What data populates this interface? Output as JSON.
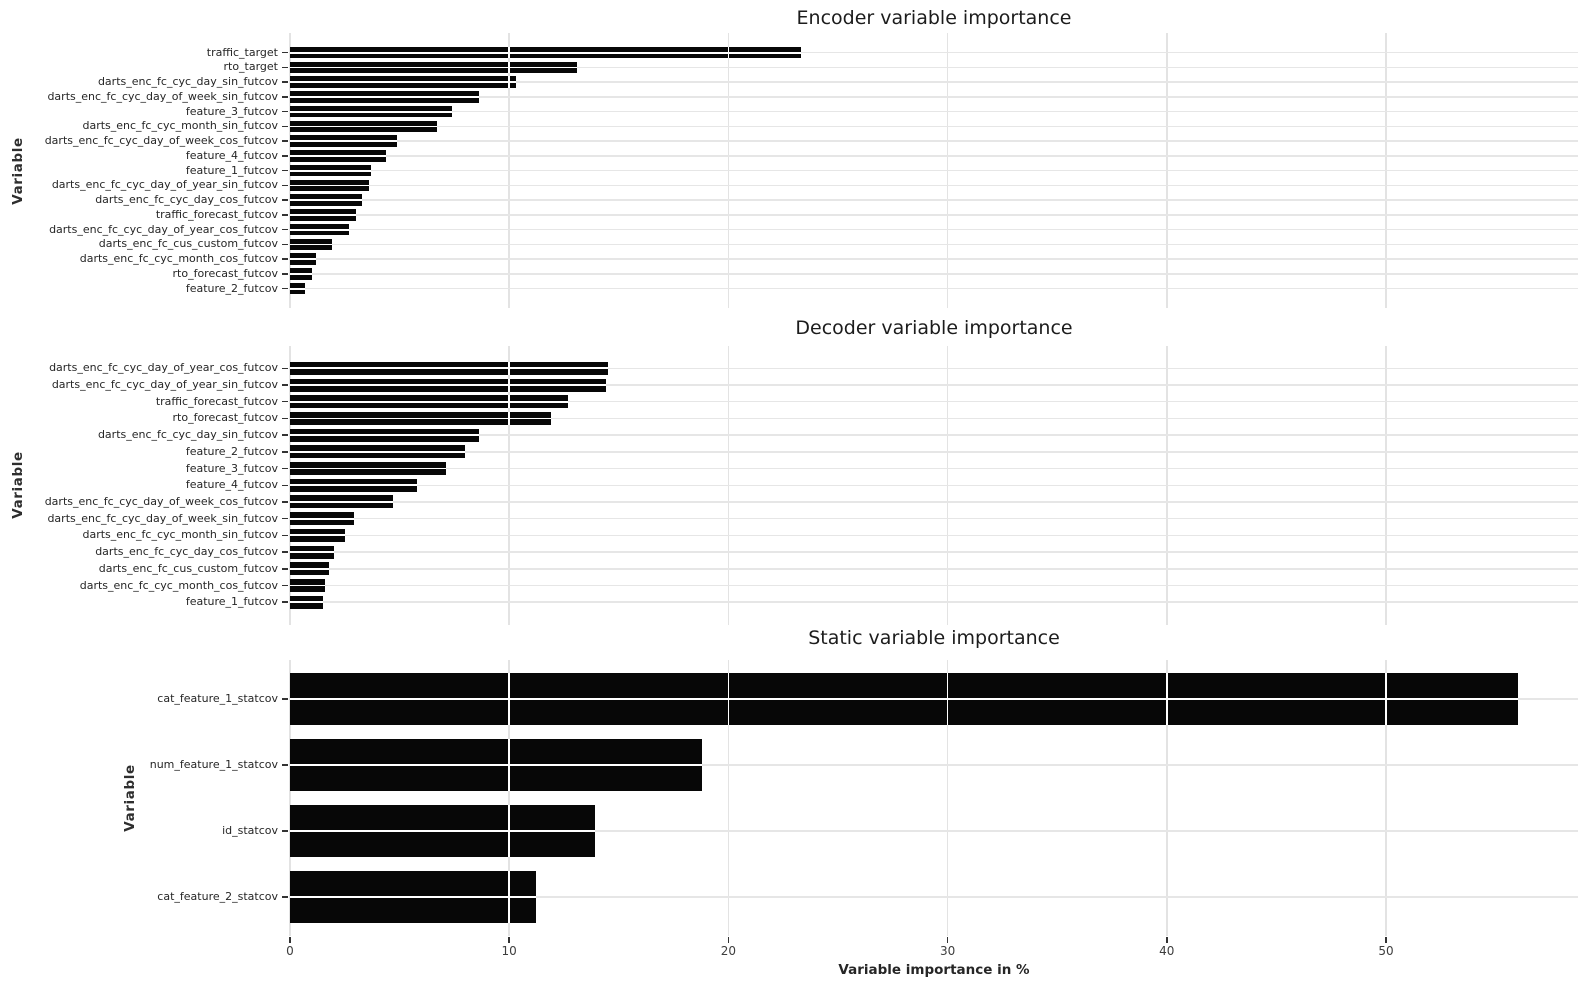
{
  "figure": {
    "background_color": "#ffffff",
    "bar_color": "#070707",
    "gridline_color": "#e3e3e3",
    "x_axis": {
      "label": "Variable importance in %",
      "ticks": [
        0,
        10,
        20,
        30,
        40,
        50
      ],
      "range": [
        0,
        58.8
      ]
    }
  },
  "chart_data": [
    {
      "type": "bar",
      "orientation": "horizontal",
      "title": "Encoder variable importance",
      "ylabel": "Variable",
      "xlabel": "",
      "xlim": [
        0,
        58.8
      ],
      "grid": true,
      "legend": "none",
      "categories": [
        "traffic_target",
        "rto_target",
        "darts_enc_fc_cyc_day_sin_futcov",
        "darts_enc_fc_cyc_day_of_week_sin_futcov",
        "feature_3_futcov",
        "darts_enc_fc_cyc_month_sin_futcov",
        "darts_enc_fc_cyc_day_of_week_cos_futcov",
        "feature_4_futcov",
        "feature_1_futcov",
        "darts_enc_fc_cyc_day_of_year_sin_futcov",
        "darts_enc_fc_cyc_day_cos_futcov",
        "traffic_forecast_futcov",
        "darts_enc_fc_cyc_day_of_year_cos_futcov",
        "darts_enc_fc_cus_custom_futcov",
        "darts_enc_fc_cyc_month_cos_futcov",
        "rto_forecast_futcov",
        "feature_2_futcov"
      ],
      "values": [
        23.3,
        13.1,
        10.3,
        8.6,
        7.4,
        6.7,
        4.9,
        4.4,
        3.7,
        3.6,
        3.3,
        3.0,
        2.7,
        1.9,
        1.2,
        1.0,
        0.7
      ]
    },
    {
      "type": "bar",
      "orientation": "horizontal",
      "title": "Decoder variable importance",
      "ylabel": "Variable",
      "xlabel": "",
      "xlim": [
        0,
        58.8
      ],
      "grid": true,
      "legend": "none",
      "categories": [
        "darts_enc_fc_cyc_day_of_year_cos_futcov",
        "darts_enc_fc_cyc_day_of_year_sin_futcov",
        "traffic_forecast_futcov",
        "rto_forecast_futcov",
        "darts_enc_fc_cyc_day_sin_futcov",
        "feature_2_futcov",
        "feature_3_futcov",
        "feature_4_futcov",
        "darts_enc_fc_cyc_day_of_week_cos_futcov",
        "darts_enc_fc_cyc_day_of_week_sin_futcov",
        "darts_enc_fc_cyc_month_sin_futcov",
        "darts_enc_fc_cyc_day_cos_futcov",
        "darts_enc_fc_cus_custom_futcov",
        "darts_enc_fc_cyc_month_cos_futcov",
        "feature_1_futcov"
      ],
      "values": [
        14.5,
        14.4,
        12.7,
        11.9,
        8.6,
        8.0,
        7.1,
        5.8,
        4.7,
        2.9,
        2.5,
        2.0,
        1.8,
        1.6,
        1.5
      ]
    },
    {
      "type": "bar",
      "orientation": "horizontal",
      "title": "Static variable importance",
      "ylabel": "Variable",
      "xlabel": "Variable importance in %",
      "xlim": [
        0,
        58.8
      ],
      "grid": true,
      "legend": "none",
      "categories": [
        "cat_feature_1_statcov",
        "num_feature_1_statcov",
        "id_statcov",
        "cat_feature_2_statcov"
      ],
      "values": [
        56.0,
        18.8,
        13.9,
        11.2
      ]
    }
  ]
}
